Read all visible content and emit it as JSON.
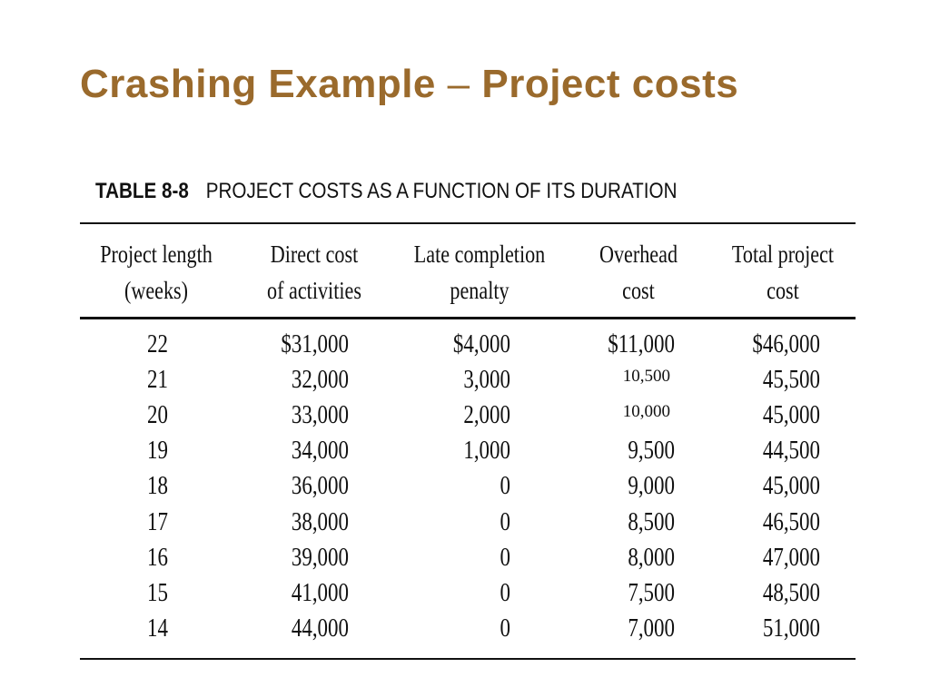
{
  "title": {
    "part1": "Crashing Example",
    "dash": "–",
    "part2": "Project costs"
  },
  "table_heading": {
    "number": "TABLE 8-8",
    "caption": "PROJECT COSTS AS A FUNCTION OF ITS DURATION"
  },
  "columns": [
    {
      "line1": "Project length",
      "line2": "(weeks)"
    },
    {
      "line1": "Direct cost",
      "line2": "of activities"
    },
    {
      "line1": "Late completion",
      "line2": "penalty"
    },
    {
      "line1": "Overhead",
      "line2": "cost"
    },
    {
      "line1": "Total project",
      "line2": "cost"
    }
  ],
  "rows": [
    [
      "22",
      "$31,000",
      "$4,000",
      "$11,000",
      "$46,000"
    ],
    [
      "21",
      "32,000",
      "3,000",
      "10,500",
      "45,500"
    ],
    [
      "20",
      "33,000",
      "2,000",
      "10,000",
      "45,000"
    ],
    [
      "19",
      "34,000",
      "1,000",
      "9,500",
      "44,500"
    ],
    [
      "18",
      "36,000",
      "0",
      "9,000",
      "45,000"
    ],
    [
      "17",
      "38,000",
      "0",
      "8,500",
      "46,500"
    ],
    [
      "16",
      "39,000",
      "0",
      "8,000",
      "47,000"
    ],
    [
      "15",
      "41,000",
      "0",
      "7,500",
      "48,500"
    ],
    [
      "14",
      "44,000",
      "0",
      "7,000",
      "51,000"
    ]
  ],
  "colors": {
    "title": "#9a6a2c",
    "text": "#111111"
  }
}
